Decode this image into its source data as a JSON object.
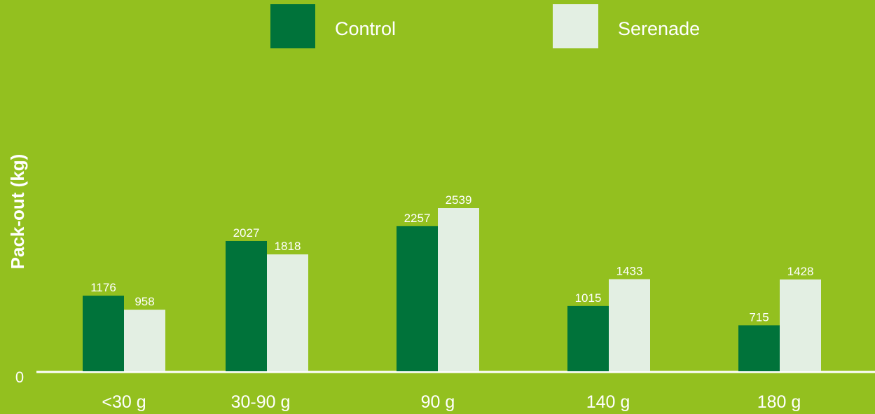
{
  "chart_data": {
    "type": "bar",
    "ylabel": "Pack-out (kg)",
    "categories": [
      "<30 g",
      "30-90 g",
      "90 g",
      "140 g",
      "180 g"
    ],
    "series": [
      {
        "name": "Control",
        "color": "#00733a",
        "values": [
          1176,
          2027,
          2257,
          1015,
          715
        ]
      },
      {
        "name": "Serenade",
        "color": "#e3efe3",
        "values": [
          958,
          1818,
          2539,
          1433,
          1428
        ]
      }
    ],
    "zero_label": "0",
    "ylim": [
      0,
      2539
    ],
    "legend": "top-center",
    "grid": false,
    "background": "#93c01f",
    "axis_color": "#ffffff"
  }
}
